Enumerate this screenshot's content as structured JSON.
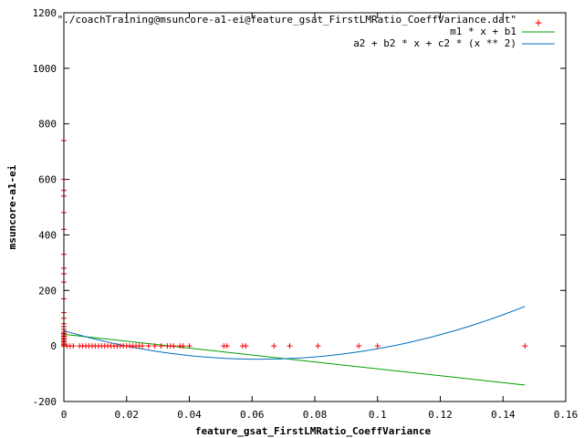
{
  "chart_data": {
    "type": "scatter",
    "xlabel": "feature_gsat_FirstLMRatio_CoeffVariance",
    "ylabel": "msuncore-a1-ei",
    "xlim": [
      0,
      0.16
    ],
    "ylim": [
      -200,
      1200
    ],
    "grid": false,
    "legend_position": "top-right",
    "x_ticks": [
      {
        "value": 0,
        "label": "0"
      },
      {
        "value": 0.02,
        "label": "0.02"
      },
      {
        "value": 0.04,
        "label": "0.04"
      },
      {
        "value": 0.06,
        "label": "0.06"
      },
      {
        "value": 0.08,
        "label": "0.08"
      },
      {
        "value": 0.1,
        "label": "0.1"
      },
      {
        "value": 0.12,
        "label": "0.12"
      },
      {
        "value": 0.14,
        "label": "0.14"
      },
      {
        "value": 0.16,
        "label": "0.16"
      }
    ],
    "y_ticks": [
      {
        "value": -200,
        "label": "-200"
      },
      {
        "value": 0,
        "label": "0"
      },
      {
        "value": 200,
        "label": "200"
      },
      {
        "value": 400,
        "label": "400"
      },
      {
        "value": 600,
        "label": "600"
      },
      {
        "value": 800,
        "label": "800"
      },
      {
        "value": 1000,
        "label": "1000"
      },
      {
        "value": 1200,
        "label": "1200"
      }
    ],
    "series": [
      {
        "name": "\"./coachTraining@msuncore-a1-ei@feature_gsat_FirstLMRatio_CoeffVariance.dat\"",
        "style": "points",
        "color": "#ff0000",
        "x": [
          0,
          0,
          0,
          0,
          0,
          0,
          0,
          0,
          0,
          0,
          0,
          0,
          0,
          0,
          0,
          0,
          0,
          0,
          0,
          0,
          0,
          0,
          0,
          0,
          0,
          0,
          0,
          0,
          0,
          0,
          0.001,
          0.002,
          0.003,
          0.005,
          0.006,
          0.007,
          0.008,
          0.009,
          0.01,
          0.011,
          0.012,
          0.013,
          0.014,
          0.015,
          0.016,
          0.017,
          0.018,
          0.019,
          0.02,
          0.021,
          0.022,
          0.023,
          0.024,
          0.025,
          0.027,
          0.029,
          0.031,
          0.033,
          0.034,
          0.035,
          0.037,
          0.038,
          0.04,
          0.051,
          0.052,
          0.057,
          0.058,
          0.067,
          0.072,
          0.081,
          0.094,
          0.1,
          0.147
        ],
        "y": [
          0,
          0,
          0,
          0,
          5,
          10,
          15,
          20,
          25,
          30,
          35,
          40,
          45,
          50,
          60,
          70,
          80,
          100,
          120,
          170,
          230,
          260,
          280,
          330,
          420,
          480,
          540,
          560,
          600,
          740,
          0,
          0,
          0,
          0,
          0,
          0,
          0,
          0,
          0,
          0,
          0,
          0,
          0,
          0,
          0,
          0,
          0,
          0,
          0,
          0,
          0,
          0,
          0,
          0,
          0,
          0,
          0,
          0,
          0,
          0,
          0,
          0,
          0,
          0,
          0,
          0,
          0,
          0,
          0,
          0,
          0,
          0,
          0
        ]
      },
      {
        "name": "m1 * x + b1",
        "style": "line",
        "color": "#00a000",
        "m": -1243,
        "b": 42
      },
      {
        "name": "a2 + b2 * x + c2 * (x ** 2)",
        "style": "line",
        "color": "#0070c0",
        "a": 55,
        "b": -3300,
        "c": 26500
      }
    ]
  }
}
